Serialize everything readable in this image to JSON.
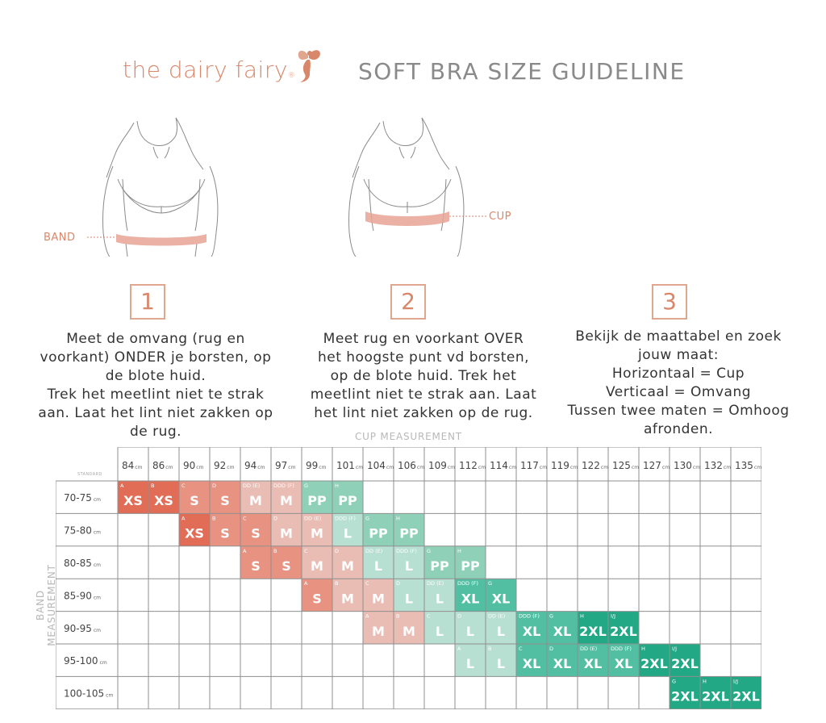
{
  "header": {
    "brand": "the dairy fairy",
    "brand_reg": "®",
    "title": "SOFT BRA SIZE GUIDELINE"
  },
  "illustrations": {
    "band_label": "BAND",
    "cup_label": "CUP",
    "tape_color": "#e8a394"
  },
  "steps": [
    {
      "number": "1",
      "lines": [
        "Meet de omvang (rug en",
        "voorkant) ONDER je borsten, op",
        "de blote huid.",
        "Trek het meetlint niet te strak",
        "aan. Laat het lint niet zakken op",
        "de rug."
      ]
    },
    {
      "number": "2",
      "lines": [
        "Meet rug en voorkant OVER",
        "het hoogste punt vd borsten,",
        "op de blote huid. Trek het",
        "meetlint niet te strak aan. Laat",
        "het lint niet zakken op de rug."
      ]
    },
    {
      "number": "3",
      "lines": [
        "Bekijk de maattabel en zoek",
        "jouw maat:",
        "Horizontaal = Cup",
        "Verticaal = Omvang",
        "Tussen twee maten = Omhoog",
        "afronden."
      ]
    }
  ],
  "table": {
    "cup_measurement_label": "CUP MEASUREMENT",
    "band_measurement_label": "BAND MEASUREMENT",
    "standard_label": "STANDARD",
    "unit": "cm",
    "cup_columns": [
      "84",
      "86",
      "90",
      "92",
      "94",
      "97",
      "99",
      "101",
      "104",
      "106",
      "109",
      "112",
      "114",
      "117",
      "119",
      "122",
      "125",
      "127",
      "130",
      "132",
      "135"
    ],
    "band_rows": [
      "70-75",
      "75-80",
      "80-85",
      "85-90",
      "90-95",
      "95-100",
      "100-105"
    ],
    "size_colors": {
      "XS": "#e16d57",
      "S": "#e89281",
      "M": "#e9bcb4",
      "L": "#b7dfd2",
      "PP": "#8fd0b8",
      "XL": "#52bfa3",
      "2XL": "#23a886"
    },
    "cells": [
      {
        "row": 0,
        "col": 0,
        "size": "XS",
        "cup": "A"
      },
      {
        "row": 0,
        "col": 1,
        "size": "XS",
        "cup": "B"
      },
      {
        "row": 0,
        "col": 2,
        "size": "S",
        "cup": "C"
      },
      {
        "row": 0,
        "col": 3,
        "size": "S",
        "cup": "D"
      },
      {
        "row": 0,
        "col": 4,
        "size": "M",
        "cup": "DD (E)"
      },
      {
        "row": 0,
        "col": 5,
        "size": "M",
        "cup": "DDD (F)"
      },
      {
        "row": 0,
        "col": 6,
        "size": "PP",
        "cup": "G"
      },
      {
        "row": 0,
        "col": 7,
        "size": "PP",
        "cup": "H"
      },
      {
        "row": 1,
        "col": 2,
        "size": "XS",
        "cup": "A"
      },
      {
        "row": 1,
        "col": 3,
        "size": "S",
        "cup": "B"
      },
      {
        "row": 1,
        "col": 4,
        "size": "S",
        "cup": "C"
      },
      {
        "row": 1,
        "col": 5,
        "size": "M",
        "cup": "D"
      },
      {
        "row": 1,
        "col": 6,
        "size": "M",
        "cup": "DD (E)"
      },
      {
        "row": 1,
        "col": 7,
        "size": "L",
        "cup": "DDD (F)"
      },
      {
        "row": 1,
        "col": 8,
        "size": "PP",
        "cup": "G"
      },
      {
        "row": 1,
        "col": 9,
        "size": "PP",
        "cup": "H"
      },
      {
        "row": 2,
        "col": 4,
        "size": "S",
        "cup": "A"
      },
      {
        "row": 2,
        "col": 5,
        "size": "S",
        "cup": "B"
      },
      {
        "row": 2,
        "col": 6,
        "size": "M",
        "cup": "C"
      },
      {
        "row": 2,
        "col": 7,
        "size": "M",
        "cup": "D"
      },
      {
        "row": 2,
        "col": 8,
        "size": "L",
        "cup": "DD (E)"
      },
      {
        "row": 2,
        "col": 9,
        "size": "L",
        "cup": "DDD (F)"
      },
      {
        "row": 2,
        "col": 10,
        "size": "PP",
        "cup": "G"
      },
      {
        "row": 2,
        "col": 11,
        "size": "PP",
        "cup": "H"
      },
      {
        "row": 3,
        "col": 6,
        "size": "S",
        "cup": "A"
      },
      {
        "row": 3,
        "col": 7,
        "size": "M",
        "cup": "B"
      },
      {
        "row": 3,
        "col": 8,
        "size": "M",
        "cup": "C"
      },
      {
        "row": 3,
        "col": 9,
        "size": "L",
        "cup": "D"
      },
      {
        "row": 3,
        "col": 10,
        "size": "L",
        "cup": "DD (E)"
      },
      {
        "row": 3,
        "col": 11,
        "size": "XL",
        "cup": "DDD (F)"
      },
      {
        "row": 3,
        "col": 12,
        "size": "XL",
        "cup": "G"
      },
      {
        "row": 4,
        "col": 8,
        "size": "M",
        "cup": "A"
      },
      {
        "row": 4,
        "col": 9,
        "size": "M",
        "cup": "B"
      },
      {
        "row": 4,
        "col": 10,
        "size": "L",
        "cup": "C"
      },
      {
        "row": 4,
        "col": 11,
        "size": "L",
        "cup": "D"
      },
      {
        "row": 4,
        "col": 12,
        "size": "L",
        "cup": "DD (E)"
      },
      {
        "row": 4,
        "col": 13,
        "size": "XL",
        "cup": "DDD (F)"
      },
      {
        "row": 4,
        "col": 14,
        "size": "XL",
        "cup": "G"
      },
      {
        "row": 4,
        "col": 15,
        "size": "2XL",
        "cup": "H"
      },
      {
        "row": 4,
        "col": 16,
        "size": "2XL",
        "cup": "I/J"
      },
      {
        "row": 5,
        "col": 11,
        "size": "L",
        "cup": "A"
      },
      {
        "row": 5,
        "col": 12,
        "size": "L",
        "cup": "B"
      },
      {
        "row": 5,
        "col": 13,
        "size": "XL",
        "cup": "C"
      },
      {
        "row": 5,
        "col": 14,
        "size": "XL",
        "cup": "D"
      },
      {
        "row": 5,
        "col": 15,
        "size": "XL",
        "cup": "DD (E)"
      },
      {
        "row": 5,
        "col": 16,
        "size": "XL",
        "cup": "DDD (F)"
      },
      {
        "row": 5,
        "col": 17,
        "size": "2XL",
        "cup": "H"
      },
      {
        "row": 5,
        "col": 18,
        "size": "2XL",
        "cup": "I/J"
      },
      {
        "row": 6,
        "col": 18,
        "size": "2XL",
        "cup": "G"
      },
      {
        "row": 6,
        "col": 19,
        "size": "2XL",
        "cup": "H"
      },
      {
        "row": 6,
        "col": 20,
        "size": "2XL",
        "cup": "I/J"
      }
    ]
  }
}
